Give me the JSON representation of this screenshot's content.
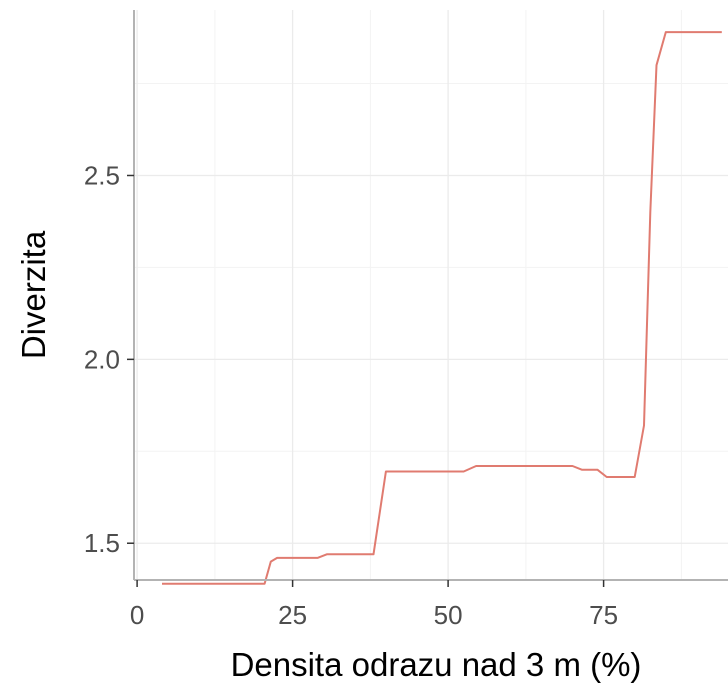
{
  "chart_data": {
    "type": "line",
    "title": "",
    "xlabel": "Densita odrazu nad 3 m (%)",
    "ylabel": "Diverzita",
    "xlim": [
      -0.5,
      95
    ],
    "ylim": [
      1.4,
      2.95
    ],
    "x_ticks": [
      {
        "value": 0,
        "label": "0"
      },
      {
        "value": 25,
        "label": "25"
      },
      {
        "value": 50,
        "label": "50"
      },
      {
        "value": 75,
        "label": "75"
      }
    ],
    "y_ticks": [
      {
        "value": 1.5,
        "label": "1.5"
      },
      {
        "value": 2.0,
        "label": "2.0"
      },
      {
        "value": 2.5,
        "label": "2.5"
      }
    ],
    "grid": true,
    "series": [
      {
        "color": "#e07b70",
        "x": [
          4,
          20.5,
          21.5,
          22.5,
          29,
          30.5,
          38,
          40,
          52.5,
          54.5,
          57.5,
          70,
          71.5,
          74,
          75.5,
          80,
          81.5,
          82.5,
          83.5,
          85,
          94
        ],
        "y": [
          1.39,
          1.39,
          1.45,
          1.46,
          1.46,
          1.47,
          1.47,
          1.695,
          1.695,
          1.71,
          1.71,
          1.71,
          1.7,
          1.7,
          1.68,
          1.68,
          1.82,
          2.4,
          2.8,
          2.89,
          2.89
        ]
      }
    ]
  }
}
